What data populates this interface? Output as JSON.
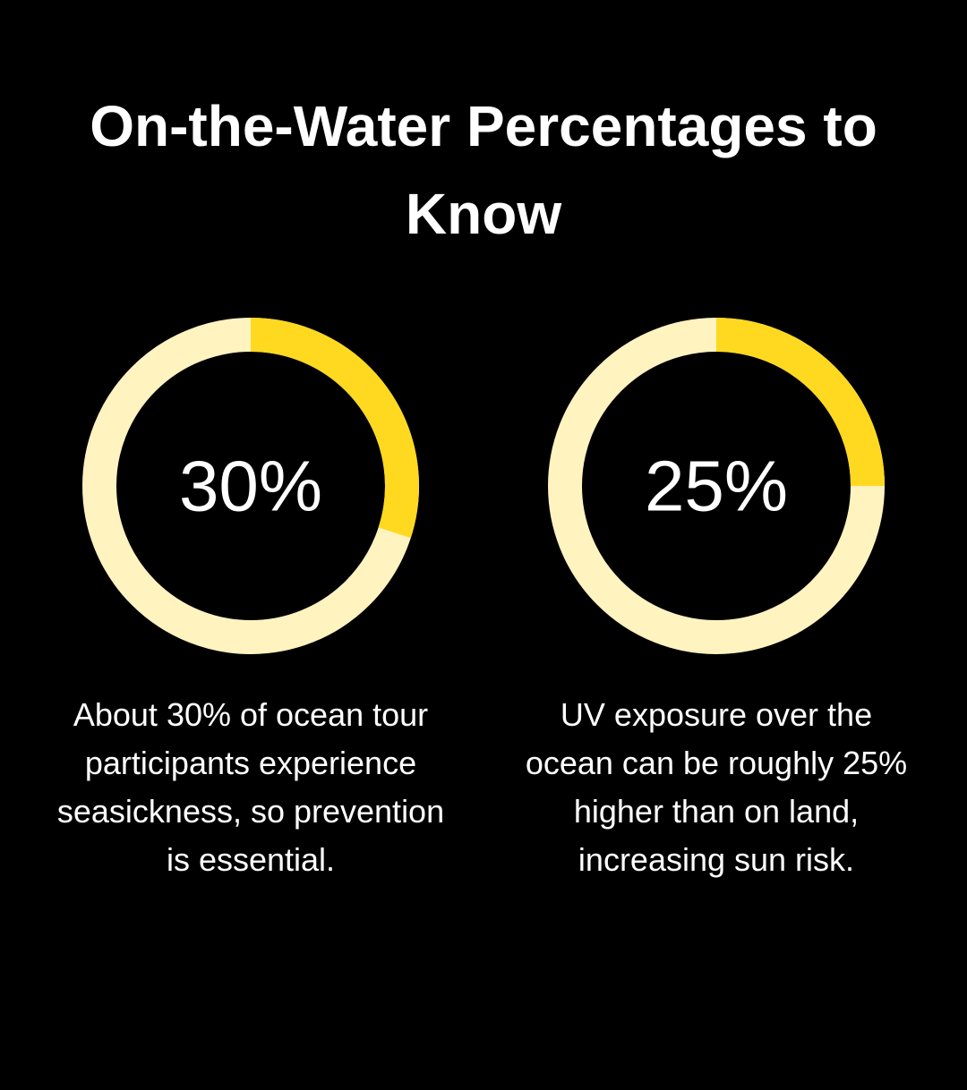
{
  "title": "On-the-Water Percentages to Know",
  "chart_data": [
    {
      "type": "donut",
      "values": [
        30
      ],
      "value_labels": [
        "30%"
      ],
      "color": "#ffd91f",
      "track_color": "#fff3c0",
      "caption": [
        "About 30% of ocean tour",
        "participants experience",
        "seasickness, so prevention",
        "is essential."
      ]
    },
    {
      "type": "donut",
      "values": [
        25
      ],
      "value_labels": [
        "25%"
      ],
      "color": "#ffd91f",
      "track_color": "#fff3c0",
      "caption": [
        "UV exposure over the",
        "ocean can be roughly 25%",
        "higher than on land,",
        "increasing sun risk."
      ]
    }
  ]
}
